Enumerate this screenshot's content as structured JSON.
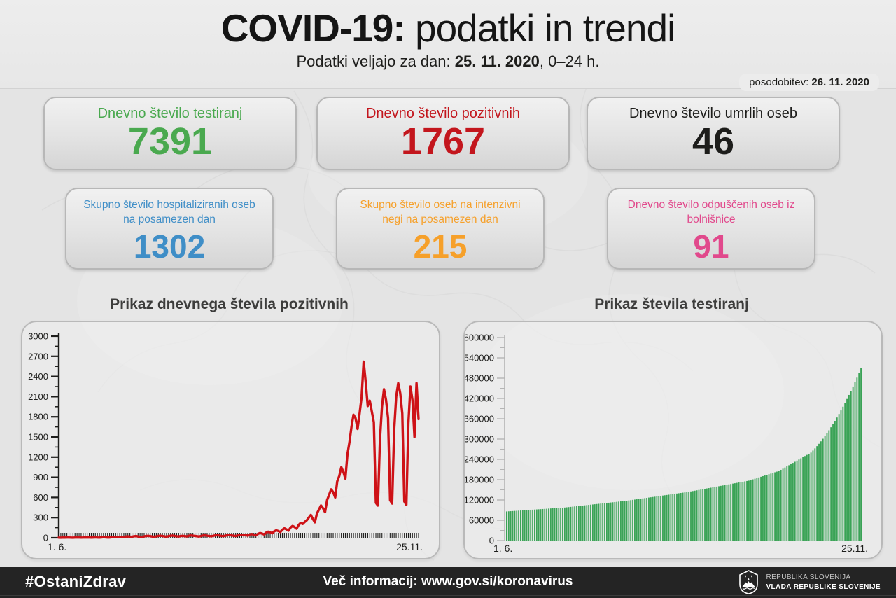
{
  "header": {
    "title_bold": "COVID-19:",
    "title_rest": " podatki in trendi",
    "subtitle_prefix": "Podatki veljajo za dan: ",
    "subtitle_date": "25. 11. 2020",
    "subtitle_suffix": ", 0–24 h.",
    "update_label": "posodobitev: ",
    "update_date": "26. 11. 2020"
  },
  "cards": [
    {
      "label": "Dnevno število testiranj",
      "value": "7391",
      "color": "#4aa94f"
    },
    {
      "label": "Dnevno število pozitivnih",
      "value": "1767",
      "color": "#c3161d"
    },
    {
      "label": "Dnevno število umrlih oseb",
      "value": "46",
      "color": "#1d1d1b"
    },
    {
      "label": "Skupno število hospitaliziranih oseb na posamezen dan",
      "value": "1302",
      "color": "#3f8ec7"
    },
    {
      "label": "Skupno število oseb na intenzivni negi na posamezen dan",
      "value": "215",
      "color": "#f6a02a"
    },
    {
      "label": "Dnevno število odpuščenih oseb iz bolnišnice",
      "value": "91",
      "color": "#e1498c"
    }
  ],
  "chart_data": [
    {
      "type": "line",
      "title": "Prikaz dnevnega števila pozitivnih",
      "xlabel_start": "1. 6.",
      "xlabel_end": "25.11.",
      "ylim": [
        0,
        3000
      ],
      "y_tick_step": 300,
      "grid": false,
      "line_color": "#ce1217",
      "axis_color": "#1d1d1b",
      "x_range_note": "daily values 1.6.2020 - 25.11.2020",
      "values": [
        2,
        1,
        3,
        2,
        4,
        3,
        2,
        1,
        3,
        5,
        4,
        2,
        3,
        5,
        4,
        3,
        2,
        4,
        6,
        3,
        2,
        5,
        8,
        6,
        4,
        3,
        7,
        9,
        11,
        8,
        10,
        15,
        12,
        18,
        20,
        16,
        14,
        22,
        25,
        19,
        15,
        13,
        20,
        26,
        28,
        24,
        18,
        15,
        21,
        27,
        30,
        25,
        20,
        16,
        24,
        29,
        32,
        27,
        22,
        19,
        25,
        28,
        24,
        20,
        29,
        34,
        31,
        27,
        23,
        18,
        26,
        33,
        36,
        30,
        25,
        21,
        28,
        35,
        38,
        33,
        27,
        24,
        31,
        37,
        40,
        35,
        29,
        26,
        33,
        39,
        42,
        36,
        40,
        30,
        48,
        55,
        45,
        35,
        58,
        70,
        62,
        48,
        75,
        90,
        80,
        65,
        95,
        110,
        100,
        85,
        120,
        140,
        125,
        105,
        150,
        175,
        160,
        135,
        190,
        220,
        205,
        235,
        260,
        300,
        340,
        280,
        230,
        360,
        420,
        480,
        440,
        380,
        560,
        640,
        720,
        680,
        600,
        840,
        920,
        1050,
        980,
        880,
        1240,
        1420,
        1650,
        1830,
        1780,
        1620,
        1850,
        2100,
        2620,
        2320,
        1960,
        2040,
        1880,
        1720,
        520,
        480,
        1450,
        1950,
        2210,
        2050,
        1780,
        560,
        510,
        1600,
        2100,
        2300,
        2150,
        1850,
        540,
        490,
        1700,
        2250,
        2050,
        1500,
        2300,
        1767
      ]
    },
    {
      "type": "bar",
      "title": "Prikaz števila testiranj",
      "xlabel_start": "1. 6.",
      "xlabel_end": "25.11.",
      "ylim": [
        0,
        600000
      ],
      "y_tick_step": 60000,
      "grid": false,
      "bar_color": "#3aa356",
      "axis_color": "#b4b4b4",
      "x_range_note": "cumulative tests daily 1.6.2020 - 25.11.2020",
      "values": [
        86000,
        86400,
        86800,
        87200,
        87600,
        88000,
        88400,
        88800,
        89200,
        89600,
        90000,
        90400,
        90800,
        91200,
        91600,
        92000,
        92400,
        92800,
        93200,
        93600,
        94000,
        94400,
        94800,
        95200,
        95600,
        96000,
        96400,
        96800,
        97200,
        97600,
        98250,
        98900,
        99550,
        100200,
        100850,
        101500,
        102150,
        102800,
        103450,
        104100,
        104750,
        105400,
        106050,
        106700,
        107350,
        108000,
        108650,
        109300,
        109950,
        110600,
        111250,
        111900,
        112550,
        113200,
        113850,
        114500,
        115150,
        115800,
        116450,
        117100,
        117750,
        118600,
        119450,
        120300,
        121150,
        122000,
        122850,
        123700,
        124550,
        125400,
        126250,
        127100,
        127950,
        128800,
        129650,
        130500,
        131350,
        132200,
        133050,
        133900,
        134750,
        135600,
        136450,
        137300,
        138150,
        139000,
        139850,
        140700,
        141550,
        142400,
        143250,
        144100,
        145200,
        146300,
        147400,
        148500,
        149600,
        150700,
        151800,
        152900,
        154000,
        155100,
        156200,
        157300,
        158400,
        159500,
        160600,
        161700,
        162800,
        163900,
        165000,
        166100,
        167200,
        168300,
        169400,
        170500,
        171600,
        172700,
        173800,
        174900,
        176000,
        177100,
        179000,
        180900,
        182800,
        184700,
        186600,
        188500,
        190400,
        192300,
        194200,
        196100,
        198000,
        199900,
        201800,
        203700,
        205600,
        209000,
        212400,
        215800,
        219200,
        222600,
        226000,
        229400,
        232800,
        236200,
        239600,
        243000,
        246400,
        249800,
        253200,
        256600,
        260000,
        266000,
        272330,
        278990,
        285980,
        293300,
        300950,
        308930,
        317240,
        325880,
        334850,
        344150,
        353780,
        363740,
        374030,
        384650,
        395600,
        406880,
        418490,
        430430,
        442700,
        455300,
        468230,
        481490,
        495080,
        509000
      ]
    }
  ],
  "footer": {
    "hashtag": "#OstaniZdrav",
    "info": "Več informacij: www.gov.si/koronavirus",
    "gov_line1": "REPUBLIKA SLOVENIJA",
    "gov_line2": "VLADA REPUBLIKE SLOVENIJE"
  }
}
